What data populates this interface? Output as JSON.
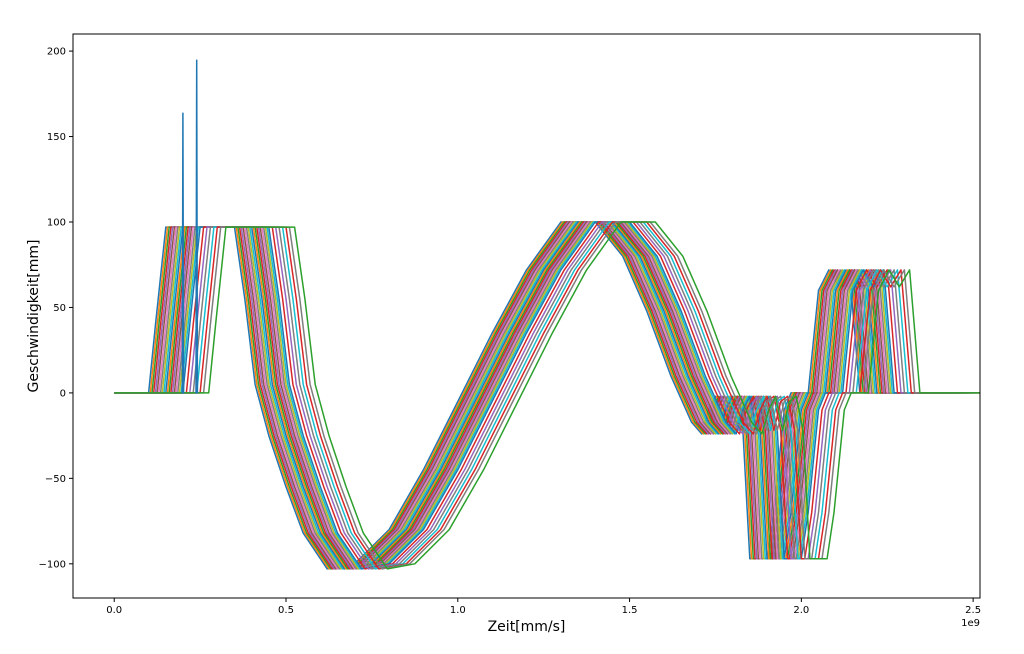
{
  "chart_data": {
    "type": "line",
    "title": "",
    "xlabel": "Zeit[mm/s]",
    "ylabel": "Geschwindigkeit[mm]",
    "x_offset_text": "1e9",
    "xlim": [
      -0.12,
      2.52
    ],
    "ylim": [
      -120,
      210
    ],
    "x_ticks": [
      0.0,
      0.5,
      1.0,
      1.5,
      2.0,
      2.5
    ],
    "x_tick_labels": [
      "0.0",
      "0.5",
      "1.0",
      "1.5",
      "2.0",
      "2.5"
    ],
    "y_ticks": [
      -100,
      -50,
      0,
      50,
      100,
      150,
      200
    ],
    "y_tick_labels": [
      "−100",
      "−50",
      "0",
      "50",
      "100",
      "150",
      "200"
    ],
    "grid": false,
    "legend": false,
    "base_profile": {
      "x": [
        0.0,
        0.1,
        0.12,
        0.15,
        0.35,
        0.38,
        0.41,
        0.45,
        0.5,
        0.55,
        0.62,
        0.7,
        0.8,
        0.9,
        1.0,
        1.1,
        1.2,
        1.3,
        1.4,
        1.48,
        1.55,
        1.62,
        1.68,
        1.71,
        1.73,
        1.75,
        1.77,
        1.79,
        1.81,
        1.83,
        1.85,
        1.9,
        1.92,
        1.95,
        1.97,
        2.02,
        2.05,
        2.08,
        2.11,
        2.14,
        2.17,
        2.37
      ],
      "y": [
        0,
        0,
        40,
        97,
        97,
        55,
        5,
        -25,
        -55,
        -82,
        -103,
        -100,
        -80,
        -45,
        -5,
        35,
        72,
        100,
        100,
        80,
        48,
        10,
        -17,
        -24,
        -10,
        -2,
        -22,
        -5,
        -2,
        -22,
        -97,
        -97,
        -70,
        -10,
        0,
        0,
        60,
        72,
        62,
        72,
        0,
        0
      ]
    },
    "series_shifts": [
      0.0,
      0.005,
      0.01,
      0.015,
      0.02,
      0.025,
      0.03,
      0.035,
      0.04,
      0.045,
      0.05,
      0.055,
      0.06,
      0.065,
      0.07,
      0.075,
      0.08,
      0.085,
      0.09,
      0.095,
      0.1,
      0.11,
      0.12,
      0.13,
      0.14,
      0.15,
      0.16,
      0.175
    ],
    "series_colors": [
      "#1f77b4",
      "#ff7f0e",
      "#2ca02c",
      "#d62728",
      "#9467bd",
      "#8c564b",
      "#e377c2",
      "#7f7f7f",
      "#bcbd22",
      "#17becf",
      "#1f77b4",
      "#ff7f0e",
      "#2ca02c",
      "#d62728",
      "#9467bd",
      "#8c564b",
      "#e377c2",
      "#7f7f7f",
      "#bcbd22",
      "#17becf",
      "#1f77b4",
      "#d62728",
      "#9467bd",
      "#7f7f7f",
      "#17becf",
      "#d62728",
      "#7f7f7f",
      "#2ca02c"
    ],
    "spikes": [
      {
        "x": 0.2,
        "y": 164,
        "color": "#1f77b4"
      },
      {
        "x": 0.24,
        "y": 195,
        "color": "#1f77b4"
      }
    ]
  }
}
